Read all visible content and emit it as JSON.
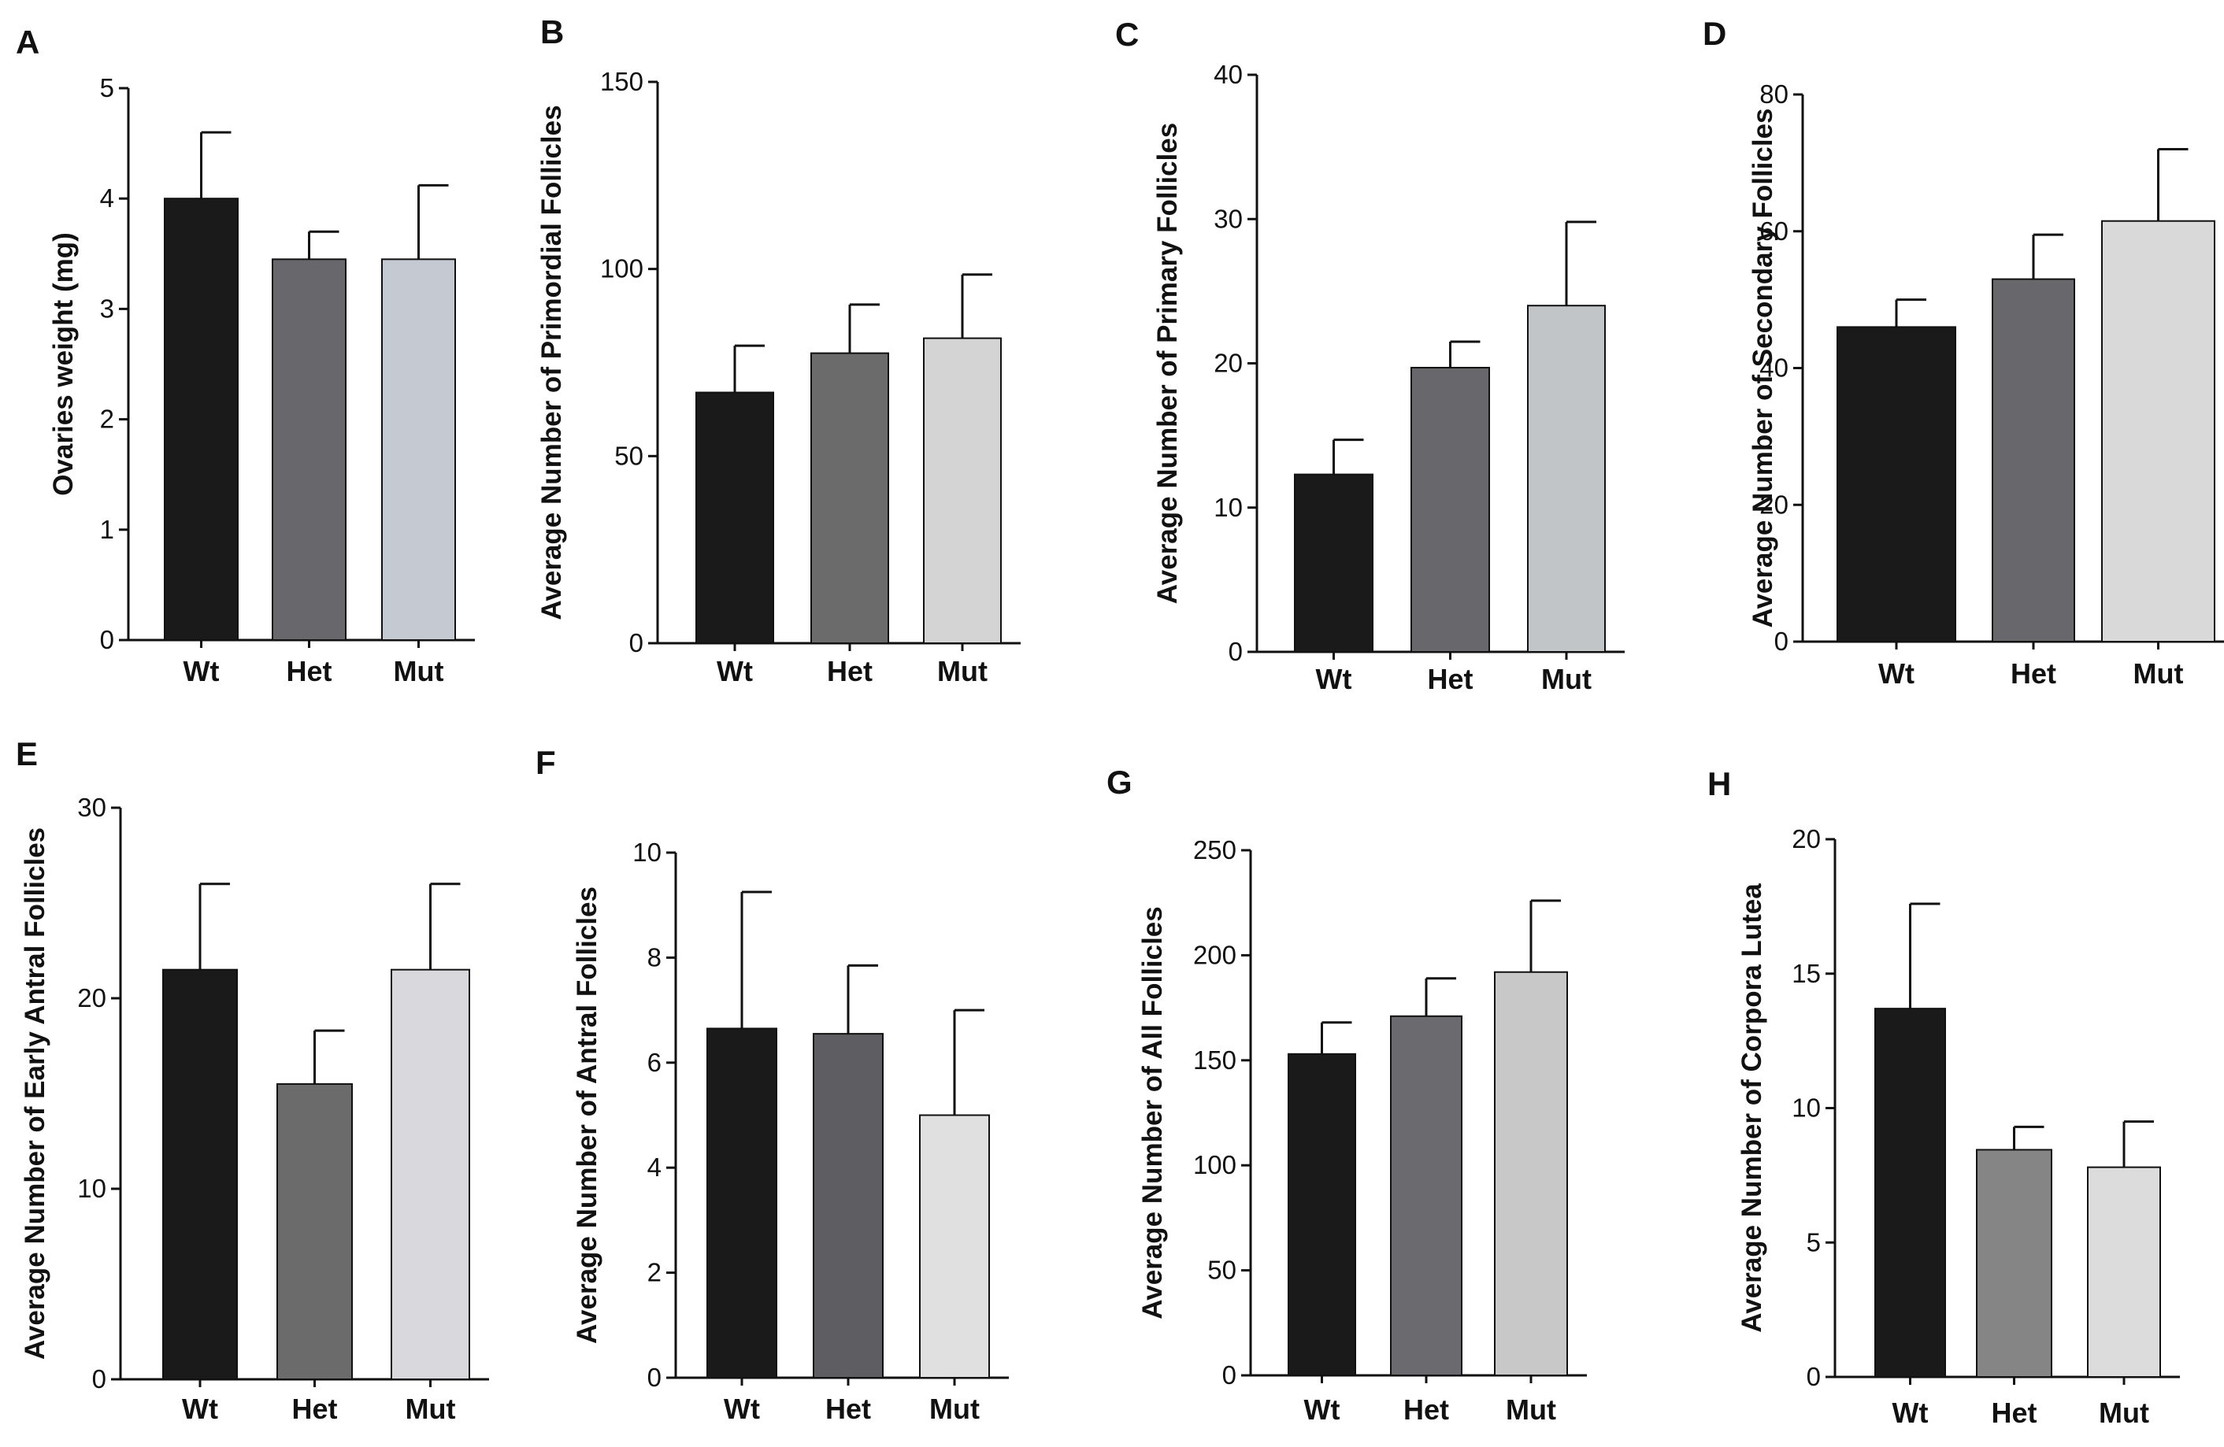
{
  "chart_data": [
    {
      "panel": "A",
      "type": "bar",
      "ylabel": "Ovaries weight (mg)",
      "categories": [
        "Wt",
        "Het",
        "Mut"
      ],
      "values": [
        4.0,
        3.45,
        3.45
      ],
      "errors": [
        0.6,
        0.25,
        0.67
      ],
      "colors": [
        "#1a1a1a",
        "#68686c",
        "#c5cad2"
      ],
      "ylim": [
        0,
        5
      ],
      "yticks": [
        0,
        1,
        2,
        3,
        4,
        5
      ]
    },
    {
      "panel": "B",
      "type": "bar",
      "ylabel": "Average Number of Primordial Follicles",
      "categories": [
        "Wt",
        "Het",
        "Mut"
      ],
      "values": [
        67,
        77.5,
        81.5
      ],
      "errors": [
        12.5,
        13,
        17
      ],
      "colors": [
        "#1a1a1a",
        "#6b6b6b",
        "#d4d4d4"
      ],
      "ylim": [
        0,
        150
      ],
      "yticks": [
        0,
        50,
        100,
        150
      ]
    },
    {
      "panel": "C",
      "type": "bar",
      "ylabel": "Average Number of Primary Follicles",
      "categories": [
        "Wt",
        "Het",
        "Mut"
      ],
      "values": [
        12.3,
        19.7,
        24.0
      ],
      "errors": [
        2.4,
        1.8,
        5.8
      ],
      "colors": [
        "#1a1a1a",
        "#68686c",
        "#c2c5c8"
      ],
      "ylim": [
        0,
        40
      ],
      "yticks": [
        0,
        10,
        20,
        30,
        40
      ]
    },
    {
      "panel": "D",
      "type": "bar",
      "ylabel": "Average Number of Secondary Follicles",
      "categories": [
        "Wt",
        "Het",
        "Mut"
      ],
      "values": [
        46,
        53,
        61.5
      ],
      "errors": [
        4,
        6.5,
        10.5
      ],
      "colors": [
        "#1a1a1a",
        "#68686c",
        "#d9d9d9"
      ],
      "ylim": [
        0,
        80
      ],
      "yticks": [
        0,
        20,
        40,
        60,
        80
      ]
    },
    {
      "panel": "E",
      "type": "bar",
      "ylabel": "Average Number of Early Antral Follicles",
      "categories": [
        "Wt",
        "Het",
        "Mut"
      ],
      "values": [
        21.5,
        15.5,
        21.5
      ],
      "errors": [
        4.5,
        2.8,
        4.5
      ],
      "colors": [
        "#1a1a1a",
        "#6b6b6b",
        "#d9d8dc"
      ],
      "ylim": [
        0,
        30
      ],
      "yticks": [
        0,
        10,
        20,
        30
      ]
    },
    {
      "panel": "F",
      "type": "bar",
      "ylabel": "Average Number of Antral Follicles",
      "categories": [
        "Wt",
        "Het",
        "Mut"
      ],
      "values": [
        6.65,
        6.55,
        5.0
      ],
      "errors": [
        2.6,
        1.3,
        2.0
      ],
      "colors": [
        "#1a1a1a",
        "#5e5e62",
        "#e0e0e0"
      ],
      "ylim": [
        0,
        10
      ],
      "yticks": [
        0,
        2,
        4,
        6,
        8,
        10
      ]
    },
    {
      "panel": "G",
      "type": "bar",
      "ylabel": "Average Number of All Follicles",
      "categories": [
        "Wt",
        "Het",
        "Mut"
      ],
      "values": [
        153,
        171,
        192
      ],
      "errors": [
        15,
        18,
        34
      ],
      "colors": [
        "#1a1a1a",
        "#6b6b6f",
        "#c8c8c8"
      ],
      "ylim": [
        0,
        250
      ],
      "yticks": [
        0,
        50,
        100,
        150,
        200,
        250
      ]
    },
    {
      "panel": "H",
      "type": "bar",
      "ylabel": "Average Number of Corpora Lutea",
      "categories": [
        "Wt",
        "Het",
        "Mut"
      ],
      "values": [
        13.7,
        8.45,
        7.8
      ],
      "errors": [
        3.9,
        0.85,
        1.7
      ],
      "colors": [
        "#1a1a1a",
        "#858585",
        "#dcdcdc"
      ],
      "ylim": [
        0,
        20
      ],
      "yticks": [
        0,
        5,
        10,
        15,
        20
      ]
    }
  ]
}
